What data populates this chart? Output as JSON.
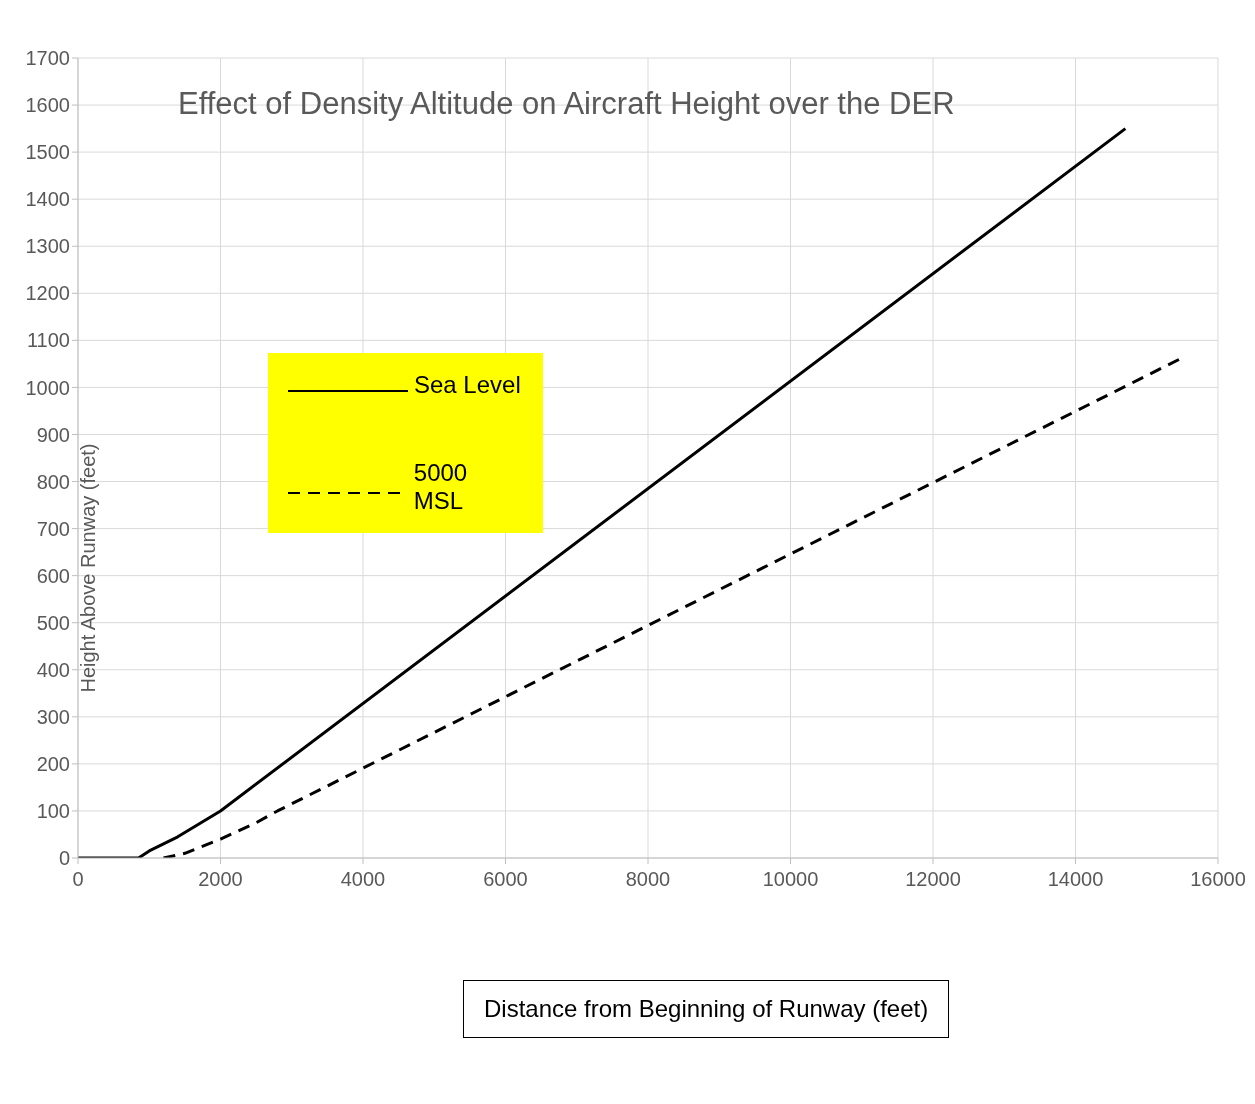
{
  "chart_data": {
    "type": "line",
    "title": "Effect of Density Altitude on Aircraft Height over the DER",
    "xlabel": "Distance from Beginning of Runway (feet)",
    "ylabel": "Height Above Runway (feet)",
    "xlim": [
      0,
      16000
    ],
    "xticks": [
      0,
      2000,
      4000,
      6000,
      8000,
      10000,
      12000,
      14000,
      16000
    ],
    "ylim": [
      0,
      1700
    ],
    "yticks": [
      0,
      100,
      200,
      300,
      400,
      500,
      600,
      700,
      800,
      900,
      1000,
      1100,
      1200,
      1300,
      1400,
      1500,
      1600,
      1700
    ],
    "grid": true,
    "legend": "top left",
    "marker": "none",
    "series": [
      {
        "name": "Sea Level",
        "color": "#000000",
        "line_style": "solid",
        "x": [
          0,
          850,
          1000,
          1400,
          2000,
          14700
        ],
        "values": [
          0,
          0,
          15,
          45,
          100,
          1550
        ]
      },
      {
        "name": "5000 MSL",
        "color": "#000000",
        "line_style": "dashed",
        "x": [
          1200,
          1500,
          2000,
          2500,
          2800,
          15500
        ],
        "values": [
          0,
          10,
          40,
          75,
          100,
          1063
        ]
      }
    ]
  }
}
